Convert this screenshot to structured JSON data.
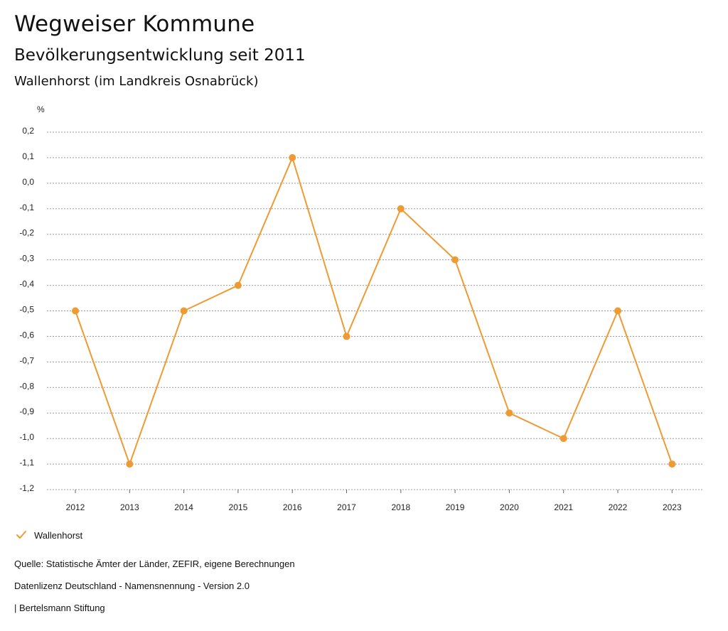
{
  "header": {
    "title": "Wegweiser Kommune",
    "subtitle": "Bevölkerungsentwicklung seit 2011",
    "region": "Wallenhorst (im Landkreis Osnabrück)"
  },
  "chart_data": {
    "type": "line",
    "ylabel": "%",
    "xlabel": "",
    "ylim": [
      -1.2,
      0.2
    ],
    "yticks": [
      0.2,
      0.1,
      0.0,
      -0.1,
      -0.2,
      -0.3,
      -0.4,
      -0.5,
      -0.6,
      -0.7,
      -0.8,
      -0.9,
      -1.0,
      -1.1,
      -1.2
    ],
    "ytick_labels": [
      "0,2",
      "0,1",
      "0,0",
      "-0,1",
      "-0,2",
      "-0,3",
      "-0,4",
      "-0,5",
      "-0,6",
      "-0,7",
      "-0,8",
      "-0,9",
      "-1,0",
      "-1,1",
      "-1,2"
    ],
    "categories": [
      "2012",
      "2013",
      "2014",
      "2015",
      "2016",
      "2017",
      "2018",
      "2019",
      "2020",
      "2021",
      "2022",
      "2023"
    ],
    "series": [
      {
        "name": "Wallenhorst",
        "values": [
          -0.5,
          -1.1,
          -0.5,
          -0.4,
          0.1,
          -0.6,
          -0.1,
          -0.3,
          -0.9,
          -1.0,
          -0.5,
          -1.1
        ]
      }
    ],
    "grid": true,
    "legend_position": "bottom-left",
    "color": "#ee9b34"
  },
  "legend": {
    "label": "Wallenhorst"
  },
  "footer": {
    "source": "Quelle: Statistische Ämter der Länder, ZEFIR, eigene Berechnungen",
    "license": "Datenlizenz Deutschland - Namensnennung - Version 2.0",
    "publisher": "| Bertelsmann Stiftung"
  }
}
